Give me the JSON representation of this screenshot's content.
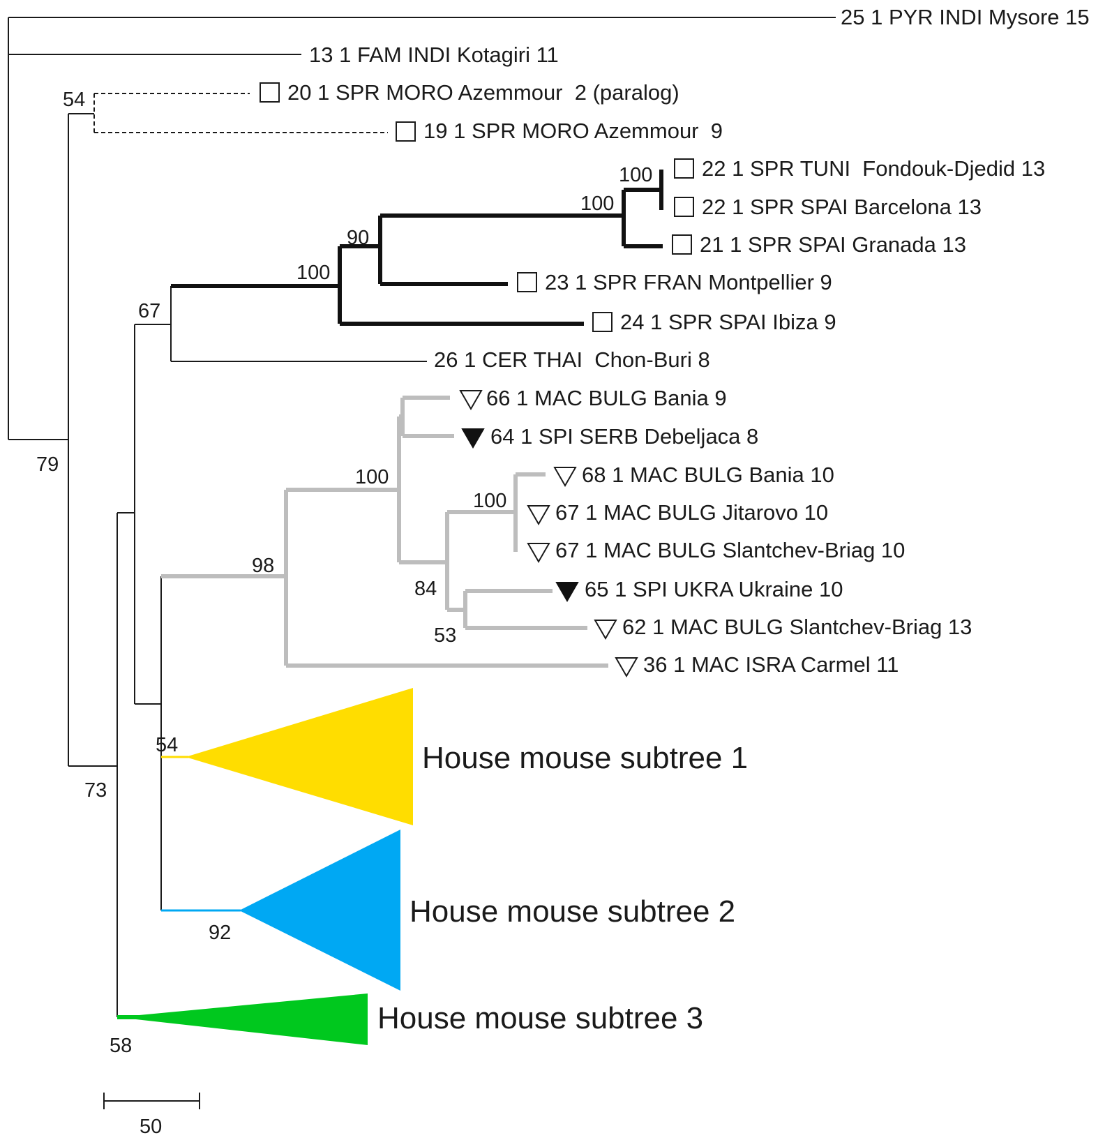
{
  "leaves": [
    {
      "id": "l1",
      "label": "25 1 PYR INDI Mysore 15",
      "marker": "none"
    },
    {
      "id": "l2",
      "label": "13 1 FAM INDI Kotagiri 11",
      "marker": "none"
    },
    {
      "id": "l3",
      "label": "20 1 SPR MORO Azemmour  2 (paralog)",
      "marker": "open-square"
    },
    {
      "id": "l4",
      "label": "19 1 SPR MORO Azemmour  9",
      "marker": "open-square"
    },
    {
      "id": "l5",
      "label": "22 1 SPR TUNI  Fondouk-Djedid 13",
      "marker": "open-square"
    },
    {
      "id": "l6",
      "label": "22 1 SPR SPAI Barcelona 13",
      "marker": "open-square"
    },
    {
      "id": "l7",
      "label": "21 1 SPR SPAI Granada 13",
      "marker": "open-square"
    },
    {
      "id": "l8",
      "label": "23 1 SPR FRAN Montpellier 9",
      "marker": "open-square"
    },
    {
      "id": "l9",
      "label": "24 1 SPR SPAI Ibiza 9",
      "marker": "open-square"
    },
    {
      "id": "l10",
      "label": "26 1 CER THAI  Chon-Buri 8",
      "marker": "none"
    },
    {
      "id": "l11",
      "label": "66 1 MAC BULG Bania 9",
      "marker": "open-triangle"
    },
    {
      "id": "l12",
      "label": "64 1 SPI SERB Debeljaca 8",
      "marker": "filled-triangle"
    },
    {
      "id": "l13",
      "label": "68 1 MAC BULG Bania 10",
      "marker": "open-triangle"
    },
    {
      "id": "l14",
      "label": "67 1 MAC BULG Jitarovo 10",
      "marker": "open-triangle"
    },
    {
      "id": "l15",
      "label": "67 1 MAC BULG Slantchev-Briag 10",
      "marker": "open-triangle"
    },
    {
      "id": "l16",
      "label": "65 1 SPI UKRA Ukraine 10",
      "marker": "filled-triangle"
    },
    {
      "id": "l17",
      "label": "62 1 MAC BULG Slantchev-Briag 13",
      "marker": "open-triangle"
    },
    {
      "id": "l18",
      "label": "36 1 MAC ISRA Carmel 11",
      "marker": "open-triangle"
    }
  ],
  "subtrees": [
    {
      "id": "s1",
      "label": "House mouse subtree 1",
      "color": "#FFDD00"
    },
    {
      "id": "s2",
      "label": "House mouse subtree 2",
      "color": "#00A8F3"
    },
    {
      "id": "s3",
      "label": "House mouse subtree 3",
      "color": "#00C81E"
    }
  ],
  "support_values": [
    {
      "id": "b1",
      "value": "54"
    },
    {
      "id": "b2",
      "value": "100"
    },
    {
      "id": "b3",
      "value": "100"
    },
    {
      "id": "b4",
      "value": "90"
    },
    {
      "id": "b5",
      "value": "100"
    },
    {
      "id": "b6",
      "value": "67"
    },
    {
      "id": "b7",
      "value": "79"
    },
    {
      "id": "b8",
      "value": "100"
    },
    {
      "id": "b9",
      "value": "100"
    },
    {
      "id": "b10",
      "value": "98"
    },
    {
      "id": "b11",
      "value": "84"
    },
    {
      "id": "b12",
      "value": "53"
    },
    {
      "id": "b13",
      "value": "54"
    },
    {
      "id": "b14",
      "value": "73"
    },
    {
      "id": "b15",
      "value": "92"
    },
    {
      "id": "b16",
      "value": "58"
    }
  ],
  "scale_bar": {
    "label": "50",
    "value": 50
  },
  "colors": {
    "lineage_bold": "#111111",
    "lineage_grey": "#BDBDBD",
    "branch": "#1A1A1A"
  }
}
